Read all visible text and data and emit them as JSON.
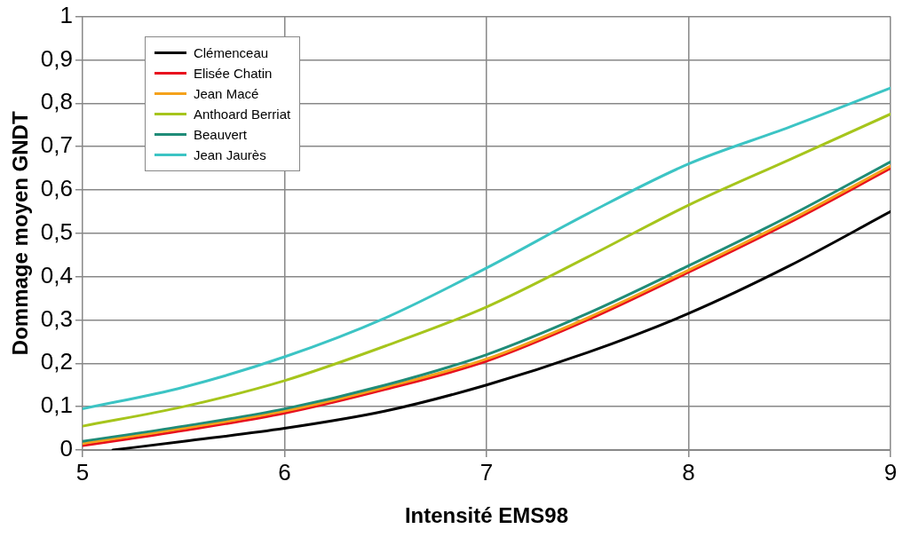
{
  "chart_data": {
    "type": "line",
    "xlabel": "Intensité EMS98",
    "ylabel": "Dommage moyen GNDT",
    "xlim": [
      5,
      9
    ],
    "xticks": [
      5,
      6,
      7,
      8,
      9
    ],
    "ylim": [
      0,
      1
    ],
    "yticks": [
      0,
      {
        "value": 0.1,
        "label": "0,1"
      },
      {
        "value": 0.2,
        "label": "0,2"
      },
      {
        "value": 0.3,
        "label": "0,3"
      },
      {
        "value": 0.4,
        "label": "0,4"
      },
      {
        "value": 0.5,
        "label": "0,5"
      },
      {
        "value": 0.6,
        "label": "0,6"
      },
      {
        "value": 0.7,
        "label": "0,7"
      },
      {
        "value": 0.8,
        "label": "0,8"
      },
      {
        "value": 0.9,
        "label": "0,9"
      },
      1
    ],
    "grid": true,
    "legend": "top left",
    "marker": "none",
    "line_style": "solid",
    "series": [
      {
        "name": "Clémenceau",
        "color": "#000000",
        "x": [
          5.15,
          5.5,
          6,
          6.5,
          7,
          7.5,
          8,
          8.5,
          9
        ],
        "values": [
          0,
          0.02,
          0.05,
          0.09,
          0.15,
          0.225,
          0.315,
          0.425,
          0.55
        ]
      },
      {
        "name": "Elisée Chatin",
        "color": "#e8101e",
        "x": [
          5,
          5.5,
          6,
          6.5,
          7,
          7.5,
          8,
          8.5,
          9
        ],
        "values": [
          0.01,
          0.045,
          0.085,
          0.14,
          0.205,
          0.3,
          0.41,
          0.525,
          0.65
        ]
      },
      {
        "name": "Jean Macé",
        "color": "#f5a21b",
        "x": [
          5,
          5.5,
          6,
          6.5,
          7,
          7.5,
          8,
          8.5,
          9
        ],
        "values": [
          0.015,
          0.05,
          0.09,
          0.145,
          0.21,
          0.305,
          0.415,
          0.53,
          0.655
        ]
      },
      {
        "name": "Anthoard Berriat",
        "color": "#a6c51c",
        "x": [
          5,
          5.5,
          6,
          6.5,
          7,
          7.5,
          8,
          8.5,
          9
        ],
        "values": [
          0.055,
          0.1,
          0.16,
          0.24,
          0.33,
          0.445,
          0.565,
          0.67,
          0.775
        ]
      },
      {
        "name": "Beauvert",
        "color": "#1f8c78",
        "x": [
          5,
          5.5,
          6,
          6.5,
          7,
          7.5,
          8,
          8.5,
          9
        ],
        "values": [
          0.02,
          0.055,
          0.095,
          0.15,
          0.22,
          0.315,
          0.425,
          0.54,
          0.665
        ]
      },
      {
        "name": "Jean Jaurès",
        "color": "#3cc4c4",
        "x": [
          5,
          5.5,
          6,
          6.5,
          7,
          7.5,
          8,
          8.5,
          9
        ],
        "values": [
          0.095,
          0.145,
          0.215,
          0.305,
          0.42,
          0.545,
          0.66,
          0.745,
          0.835
        ]
      }
    ]
  }
}
